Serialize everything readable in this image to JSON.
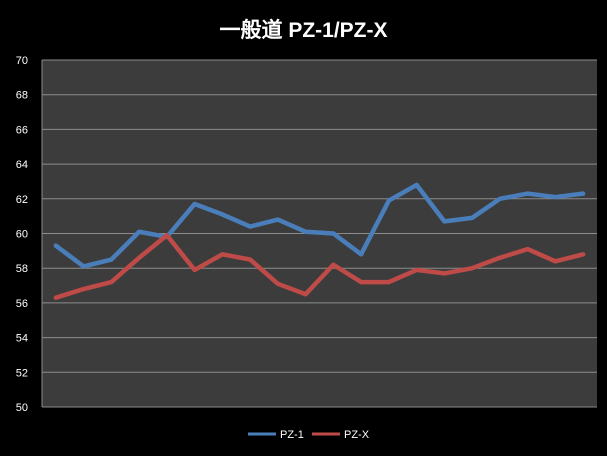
{
  "chart_data": {
    "type": "line",
    "title": "一般道 PZ-1/PZ-X",
    "xlabel": "",
    "ylabel": "",
    "ylim": [
      50,
      70
    ],
    "yticks": [
      "50",
      "52",
      "54",
      "56",
      "58",
      "60",
      "62",
      "64",
      "66",
      "68",
      "70"
    ],
    "grid": true,
    "legend_position": "bottom",
    "x": [
      1,
      2,
      3,
      4,
      5,
      6,
      7,
      8,
      9,
      10,
      11,
      12,
      13,
      14,
      15,
      16,
      17,
      18,
      19,
      20
    ],
    "series": [
      {
        "name": "PZ-1",
        "color": "#4a7ebb",
        "values": [
          59.3,
          58.1,
          58.5,
          60.1,
          59.8,
          61.7,
          61.1,
          60.4,
          60.8,
          60.1,
          60.0,
          58.8,
          61.9,
          62.8,
          60.7,
          60.9,
          62.0,
          62.3,
          62.1,
          62.3
        ]
      },
      {
        "name": "PZ-X",
        "color": "#be4b48",
        "values": [
          56.3,
          56.8,
          57.2,
          58.6,
          59.9,
          57.9,
          58.8,
          58.5,
          57.1,
          56.5,
          58.2,
          57.2,
          57.2,
          57.9,
          57.7,
          58.0,
          58.6,
          59.1,
          58.4,
          58.8
        ]
      }
    ]
  }
}
